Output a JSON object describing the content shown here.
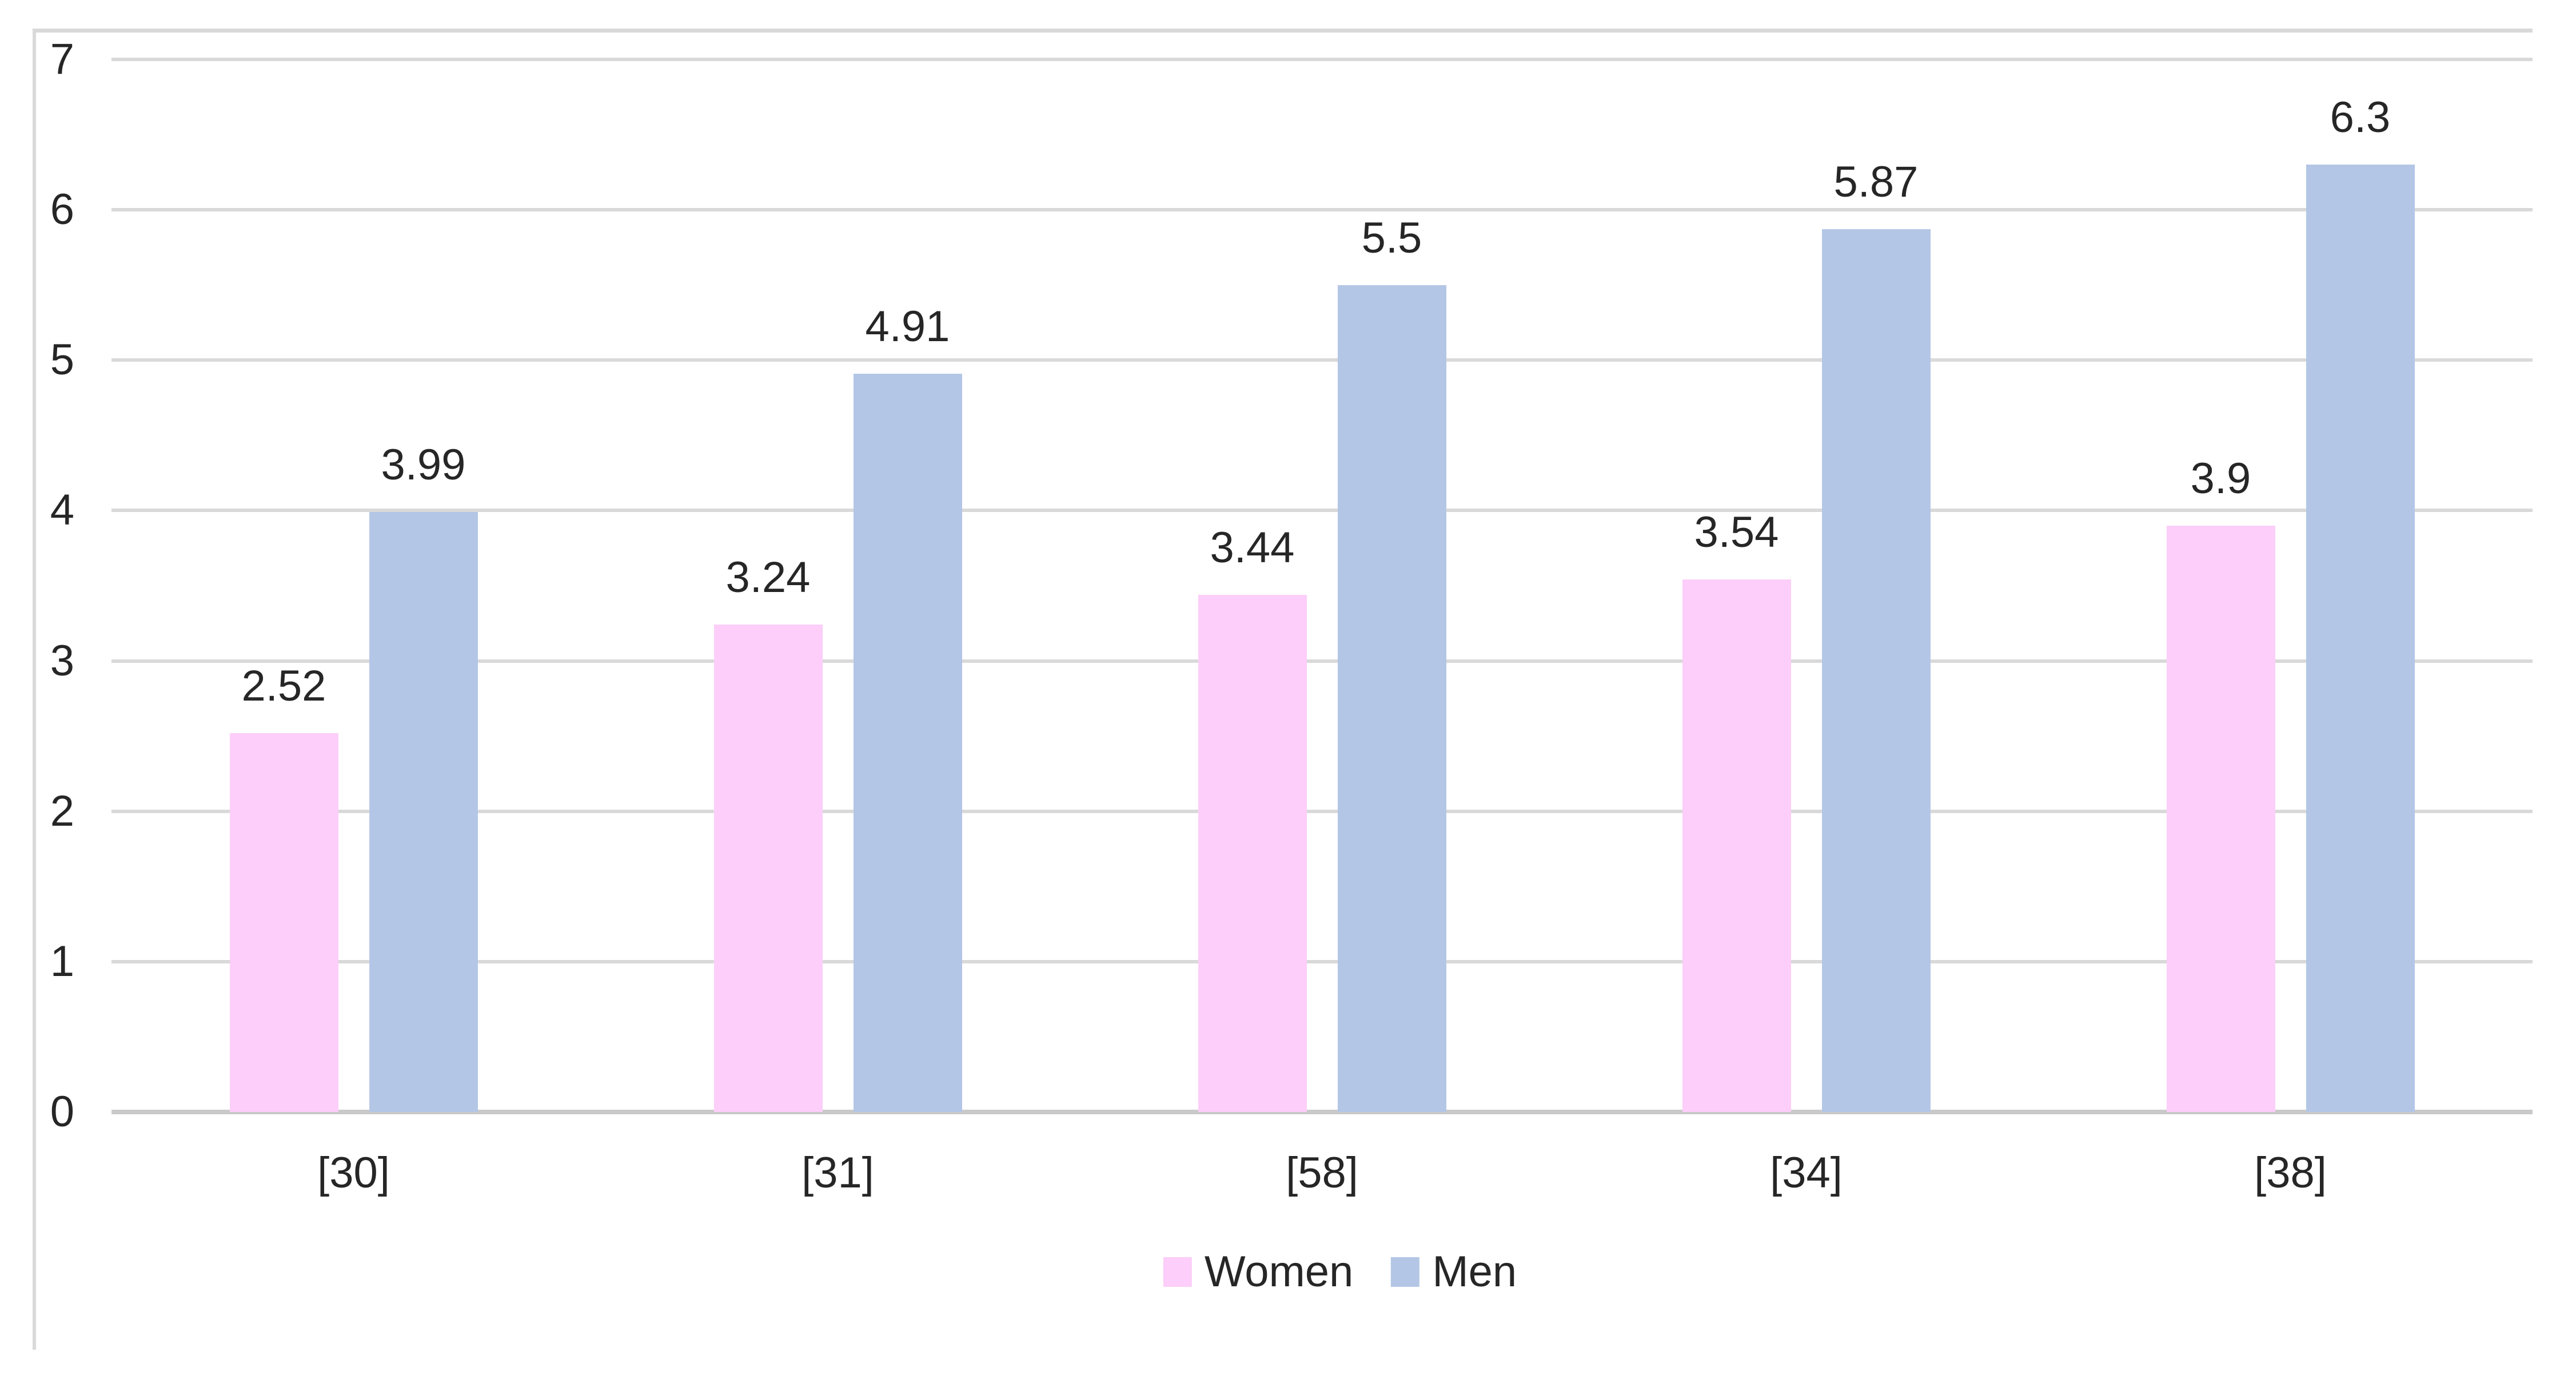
{
  "chart": {
    "background": "#FFFFFF",
    "border_color": "#D9D9D9",
    "gridline_color": "#D9D9D9",
    "axis_line_color": "#C9C9C9",
    "text_color": "#262626"
  },
  "chart_data": {
    "type": "bar",
    "title": "",
    "xlabel": "",
    "ylabel": "",
    "categories": [
      "[30]",
      "[31]",
      "[58]",
      "[34]",
      "[38]"
    ],
    "series": [
      {
        "name": "Women",
        "color": "#FCCEF9",
        "values": [
          2.52,
          3.24,
          3.44,
          3.54,
          3.9
        ],
        "labels": [
          "2.52",
          "3.24",
          "3.44",
          "3.54",
          "3.9"
        ]
      },
      {
        "name": "Men",
        "color": "#B4C6E6",
        "values": [
          3.99,
          4.91,
          5.5,
          5.87,
          6.3
        ],
        "labels": [
          "3.99",
          "4.91",
          "5.5",
          "5.87",
          "6.3"
        ]
      }
    ],
    "ylim": [
      0,
      7
    ],
    "yticks": [
      0,
      1,
      2,
      3,
      4,
      5,
      6,
      7
    ],
    "grid": true,
    "legend_position": "bottom",
    "legend": [
      "Women",
      "Men"
    ]
  }
}
